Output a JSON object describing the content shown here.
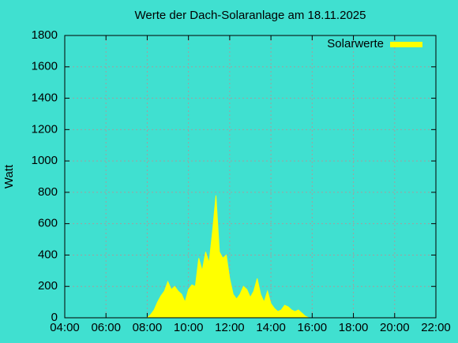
{
  "chart_data": {
    "type": "area",
    "title": "Werte der Dach-Solaranlage am 18.11.2025",
    "y_label": "Watt",
    "x": [
      "08:00",
      "08:10",
      "08:20",
      "08:30",
      "08:40",
      "08:50",
      "09:00",
      "09:10",
      "09:20",
      "09:30",
      "09:40",
      "09:50",
      "10:00",
      "10:10",
      "10:20",
      "10:30",
      "10:40",
      "10:50",
      "11:00",
      "11:10",
      "11:20",
      "11:30",
      "11:40",
      "11:50",
      "12:00",
      "12:10",
      "12:20",
      "12:30",
      "12:40",
      "12:50",
      "13:00",
      "13:10",
      "13:20",
      "13:30",
      "13:40",
      "13:50",
      "14:00",
      "14:10",
      "14:20",
      "14:30",
      "14:40",
      "14:50",
      "15:00",
      "15:10",
      "15:20",
      "15:30",
      "15:40",
      "15:50"
    ],
    "series": [
      {
        "name": "Solarwerte",
        "color": "#ffff00",
        "values": [
          0,
          20,
          50,
          100,
          140,
          170,
          230,
          180,
          200,
          170,
          150,
          100,
          180,
          210,
          200,
          380,
          300,
          420,
          350,
          550,
          780,
          420,
          380,
          400,
          250,
          150,
          120,
          150,
          200,
          180,
          130,
          170,
          250,
          150,
          100,
          170,
          90,
          60,
          40,
          50,
          80,
          70,
          50,
          40,
          50,
          30,
          10,
          0
        ]
      }
    ],
    "xlim": [
      "04:00",
      "22:00"
    ],
    "xticks": [
      "04:00",
      "06:00",
      "08:00",
      "10:00",
      "12:00",
      "14:00",
      "16:00",
      "18:00",
      "20:00",
      "22:00"
    ],
    "ylim": [
      0,
      1800
    ],
    "yticks": [
      0,
      200,
      400,
      600,
      800,
      1000,
      1200,
      1400,
      1600,
      1800
    ],
    "grid": true,
    "legend": "top-right"
  }
}
